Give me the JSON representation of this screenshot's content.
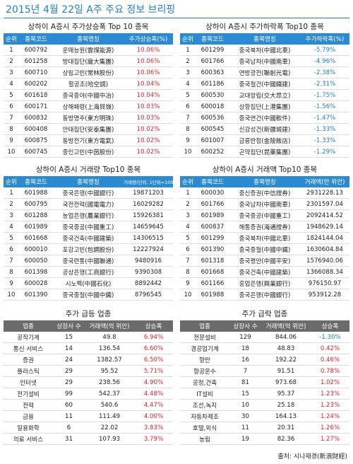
{
  "title": "2015년 4월 22일 A주 주요 정보 브리핑",
  "tables": [
    {
      "title": "상하이 A증시 주가상승폭 Top 10 종목",
      "header_color": "#2a8ad4",
      "highlight_last": true,
      "columns": [
        "순위",
        "종목코드",
        "종목명칭",
        "주가상승폭(%)"
      ],
      "rows": [
        [
          "1",
          "600792",
          "운매능원(雲煤能源)",
          "10.06%"
        ],
        [
          "2",
          "601258",
          "방대집단(龐大集團)",
          "10.06%"
        ],
        [
          "3",
          "600710",
          "상림고빈(常林股份)",
          "10.06%"
        ],
        [
          "4",
          "600202",
          "할공조(哈空調)",
          "10.04%"
        ],
        [
          "5",
          "601618",
          "중국중야(中國中冶)",
          "10.04%"
        ],
        [
          "6",
          "600171",
          "상해패령(上海貝嶺)",
          "10.03%"
        ],
        [
          "7",
          "600832",
          "동방명주(東方明珠)",
          "10.03%"
        ],
        [
          "8",
          "600408",
          "안태집단(安泰集團)",
          "10.02%"
        ],
        [
          "9",
          "600875",
          "동방전기(東方電氣)",
          "10.02%"
        ],
        [
          "10",
          "600745",
          "중인고빈(中茵股份)",
          "10.02%"
        ]
      ]
    },
    {
      "title": "상하이 A증시 주가하락폭 Top10 종목",
      "header_color": "#2a8ad4",
      "highlight_last": true,
      "columns": [
        "순위",
        "종목코드",
        "종목명칭",
        "주가하락폭(%)"
      ],
      "rows": [
        [
          "1",
          "601299",
          "중국북차(中國北車)",
          "-5.79%"
        ],
        [
          "2",
          "601766",
          "중국남차(中國南車)",
          "-4.96%"
        ],
        [
          "3",
          "600363",
          "연방광전(聯創光電)",
          "-2.38%"
        ],
        [
          "4",
          "601186",
          "중국철건(中國鐵建)",
          "-2.31%"
        ],
        [
          "5",
          "600530",
          "교대앙립(交大昂立)",
          "-1.75%"
        ],
        [
          "6",
          "600018",
          "상항집단(上港集團)",
          "-1.56%"
        ],
        [
          "7",
          "600536",
          "중국연건(中國軟件)",
          "-1.47%"
        ],
        [
          "8",
          "600545",
          "신강성건(新疆城建)",
          "-1.33%"
        ],
        [
          "9",
          "601007",
          "금릉반점(金陵飯店)",
          "-1.33%"
        ],
        [
          "10",
          "600252",
          "곤약집단(昆藥集團)",
          "-1.29%"
        ]
      ]
    },
    {
      "title": "상하이 A증시 거래량 Top10 종목",
      "header_color": "#2a8ad4",
      "highlight_last": false,
      "columns": [
        "순위",
        "종목코드",
        "종목명칭",
        "거래량(단위, 1단위=100주)"
      ],
      "rows": [
        [
          "1",
          "601988",
          "중국은행(中國銀行)",
          "19871203"
        ],
        [
          "2",
          "600795",
          "국전전력(國電電力)",
          "16029282"
        ],
        [
          "3",
          "601288",
          "농업은행(農業銀行)",
          "15926381"
        ],
        [
          "4",
          "601989",
          "중국중공(中國重工)",
          "14659645"
        ],
        [
          "5",
          "601668",
          "중국건축(中國建築)",
          "14306515"
        ],
        [
          "6",
          "600010",
          "포강고빈(包鋼股份)",
          "12227924"
        ],
        [
          "7",
          "600050",
          "중국련통(中國聯通)",
          "9480916"
        ],
        [
          "8",
          "601398",
          "공상은행(工商銀行)",
          "9390308"
        ],
        [
          "9",
          "600028",
          "시노펙(中國石化)",
          "8892442"
        ],
        [
          "10",
          "601390",
          "중국중철(中國中鐵)",
          "8796545"
        ]
      ]
    },
    {
      "title": "상하이 A증시 거래액 Top10 종목",
      "header_color": "#2a8ad4",
      "highlight_last": false,
      "columns": [
        "순위",
        "종목코드",
        "종목명칭",
        "거래액(만 위안)"
      ],
      "rows": [
        [
          "1",
          "600030",
          "중신증권(中信證券)",
          "2931228.13"
        ],
        [
          "2",
          "601766",
          "중국남차(中國南車)",
          "2301597.04"
        ],
        [
          "3",
          "601989",
          "중국중공(中國重工)",
          "2092414.52"
        ],
        [
          "4",
          "600837",
          "해통증권(海通證券)",
          "1948629.14"
        ],
        [
          "5",
          "601299",
          "중국북차(中國北車)",
          "1824144.04"
        ],
        [
          "6",
          "601390",
          "중국중철(中國中鐵)",
          "1630604.84"
        ],
        [
          "7",
          "601318",
          "중국평안(中國平安)",
          "1576940.06"
        ],
        [
          "8",
          "601668",
          "중국건축(中國建築)",
          "1366088.34"
        ],
        [
          "9",
          "601166",
          "흥업은행(興業銀行)",
          "976150.97"
        ],
        [
          "10",
          "601988",
          "중국은행(中國銀行)",
          "953912.28"
        ]
      ]
    },
    {
      "title": "주가 급등 업종",
      "header_color": "#6b6b6b",
      "highlight_last": true,
      "columns": [
        "업종",
        "상장사 수",
        "거래액(억 위안)",
        "상승폭"
      ],
      "rows": [
        [
          "공작기계",
          "15",
          "49.8",
          "6.94%"
        ],
        [
          "통신 서비스",
          "14",
          "136.54",
          "6.60%"
        ],
        [
          "증권",
          "24",
          "1382.57",
          "6.50%"
        ],
        [
          "플라스틱",
          "29",
          "95.52",
          "5.71%"
        ],
        [
          "인터넷",
          "29",
          "238.56",
          "4.90%"
        ],
        [
          "전기설비",
          "99",
          "542.37",
          "4.48%"
        ],
        [
          "전력",
          "60",
          "540.6",
          "4.47%"
        ],
        [
          "금융",
          "11",
          "111.49",
          "4.00%"
        ],
        [
          "일용화학",
          "6",
          "22.02",
          "3.83%"
        ],
        [
          "의료 서비스",
          "31",
          "107.93",
          "3.79%"
        ]
      ]
    },
    {
      "title": "주가 급락 업종",
      "header_color": "#6b6b6b",
      "highlight_last": true,
      "columns": [
        "업종",
        "상장사 수",
        "거래액(억 위안)",
        "상승폭"
      ],
      "rows": [
        [
          "전문설비",
          "129",
          "844.06",
          "-1.30%"
        ],
        [
          "경공업기계",
          "18",
          "48.83",
          "0.42%"
        ],
        [
          "항만",
          "16",
          "192.22",
          "0.46%"
        ],
        [
          "항공운수",
          "7",
          "91.51",
          "0.78%"
        ],
        [
          "공정,건축",
          "81",
          "973.68",
          "1.02%"
        ],
        [
          "IT설비",
          "15",
          "95.37",
          "1.23%"
        ],
        [
          "조선,녹지",
          "10",
          "25.18",
          "1.23%"
        ],
        [
          "자동차제조",
          "30",
          "164.13",
          "1.24%"
        ],
        [
          "호텔,외식",
          "11",
          "20.31",
          "1.26%"
        ],
        [
          "농림",
          "19",
          "82.36",
          "1.27%"
        ]
      ]
    }
  ],
  "source": "출처: 시나재경(新浪財經)"
}
